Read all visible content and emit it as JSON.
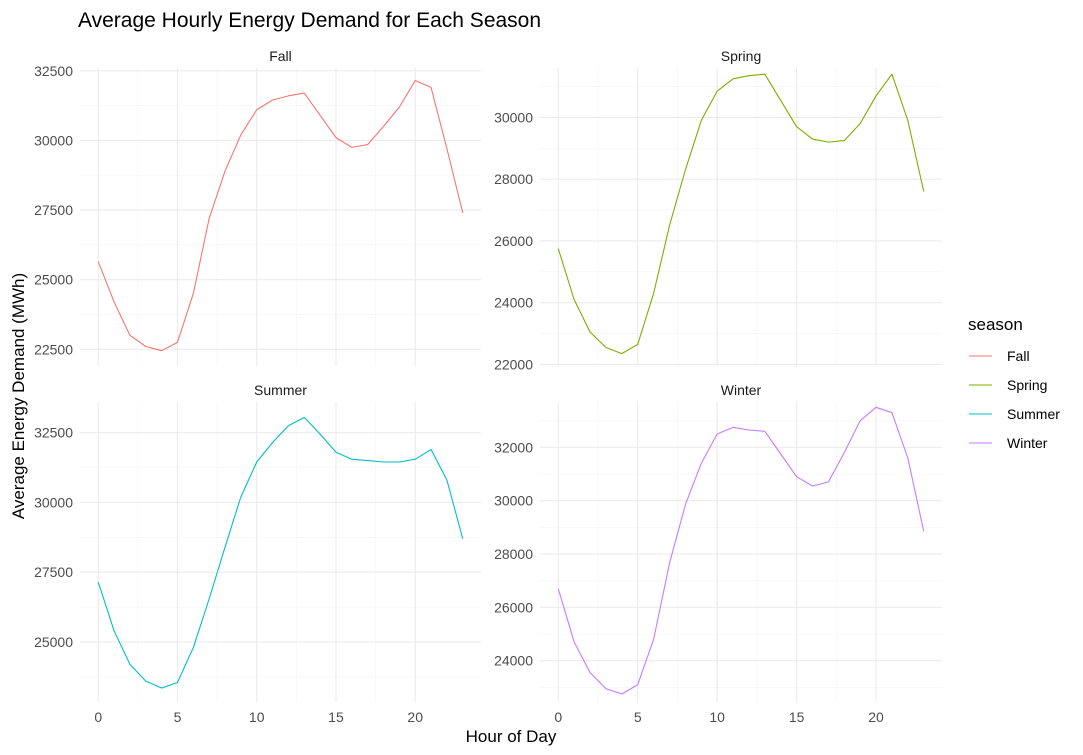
{
  "chart_data": {
    "type": "line",
    "title": "Average Hourly Energy Demand for Each Season",
    "xlabel": "Hour of Day",
    "ylabel": "Average Energy Demand (MWh)",
    "legend": {
      "title": "season",
      "position": "right"
    },
    "grid": true,
    "x": [
      0,
      1,
      2,
      3,
      4,
      5,
      6,
      7,
      8,
      9,
      10,
      11,
      12,
      13,
      14,
      15,
      16,
      17,
      18,
      19,
      20,
      21,
      22,
      23
    ],
    "xlim": [
      -1.15,
      24.15
    ],
    "xticks": [
      0,
      5,
      10,
      15,
      20
    ],
    "xtick_labels": [
      "0",
      "5",
      "10",
      "15",
      "20"
    ],
    "panels": [
      {
        "name": "Fall",
        "color": "#F8766D",
        "ylim": [
          21900,
          32600
        ],
        "yticks": [
          22500,
          25000,
          27500,
          30000,
          32500
        ],
        "ytick_labels": [
          "22500",
          "25000",
          "27500",
          "30000",
          "32500"
        ],
        "values": [
          25650,
          24200,
          23000,
          22600,
          22450,
          22750,
          24500,
          27200,
          28900,
          30200,
          31100,
          31450,
          31600,
          31700,
          30900,
          30100,
          29750,
          29850,
          30500,
          31200,
          32150,
          31900,
          29700,
          27400
        ]
      },
      {
        "name": "Spring",
        "color": "#7CAE00",
        "ylim": [
          21950,
          31600
        ],
        "yticks": [
          22000,
          24000,
          26000,
          28000,
          30000
        ],
        "ytick_labels": [
          "22000",
          "24000",
          "26000",
          "28000",
          "30000"
        ],
        "values": [
          25750,
          24100,
          23050,
          22550,
          22350,
          22650,
          24300,
          26500,
          28300,
          29900,
          30850,
          31250,
          31350,
          31400,
          30550,
          29700,
          29300,
          29200,
          29250,
          29800,
          30700,
          31400,
          29900,
          27600
        ]
      },
      {
        "name": "Summer",
        "color": "#00BFC4",
        "ylim": [
          22850,
          33600
        ],
        "yticks": [
          25000,
          27500,
          30000,
          32500
        ],
        "ytick_labels": [
          "25000",
          "27500",
          "30000",
          "32500"
        ],
        "values": [
          27150,
          25400,
          24200,
          23600,
          23350,
          23550,
          24800,
          26550,
          28400,
          30200,
          31450,
          32150,
          32750,
          33050,
          32450,
          31800,
          31550,
          31500,
          31450,
          31450,
          31550,
          31900,
          30800,
          28700
        ]
      },
      {
        "name": "Winter",
        "color": "#C77CFF",
        "ylim": [
          22450,
          33700
        ],
        "yticks": [
          24000,
          26000,
          28000,
          30000,
          32000
        ],
        "ytick_labels": [
          "24000",
          "26000",
          "28000",
          "30000",
          "32000"
        ],
        "values": [
          26700,
          24700,
          23550,
          22950,
          22750,
          23100,
          24800,
          27650,
          29850,
          31400,
          32500,
          32750,
          32650,
          32600,
          31750,
          30900,
          30550,
          30700,
          31800,
          33000,
          33500,
          33300,
          31600,
          28850
        ]
      }
    ]
  }
}
